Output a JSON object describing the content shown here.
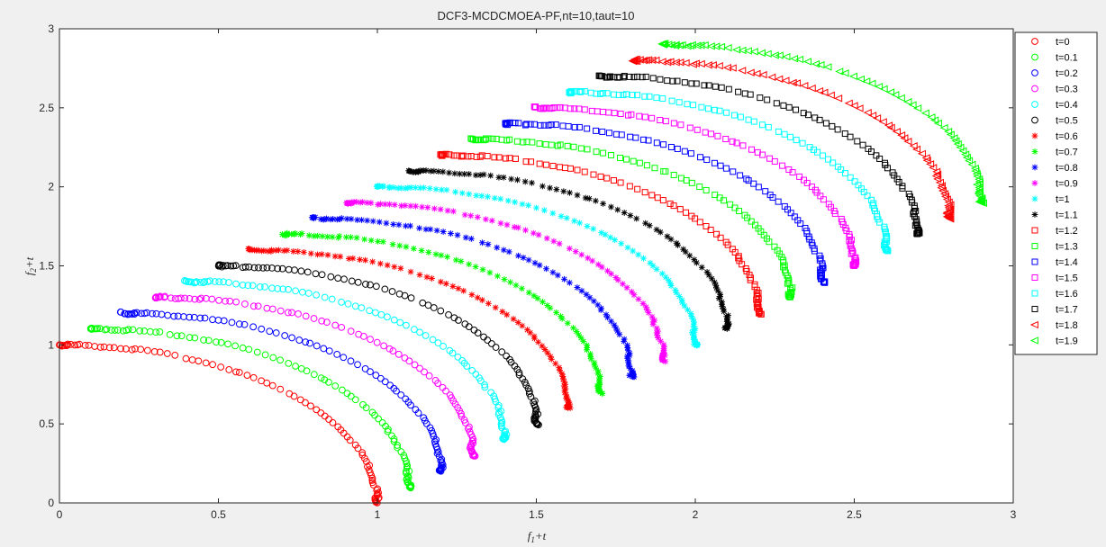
{
  "chart_data": {
    "type": "scatter",
    "title": "DCF3-MCDCMOEA-PF,nt=10,taut=10",
    "xlabel": {
      "base": "f",
      "sub": "1",
      "suffix": "+t"
    },
    "ylabel": {
      "base": "f",
      "sub": "2",
      "suffix": "+t"
    },
    "xlim": [
      0,
      3
    ],
    "ylim": [
      0,
      3
    ],
    "xticks": [
      "0",
      "0.5",
      "1",
      "1.5",
      "2",
      "2.5",
      "3"
    ],
    "yticks": [
      "0",
      "0.5",
      "1",
      "1.5",
      "2",
      "2.5",
      "3"
    ],
    "grid": false,
    "legend_position": "top-right",
    "front_shape": "quarter circle of radius 1 from (t, 1+t) to (1+t, t), points concentrated near the ends",
    "series": [
      {
        "name": "t=0",
        "t": 0.0,
        "marker": "circle",
        "color": "#ff0000"
      },
      {
        "name": "t=0.1",
        "t": 0.1,
        "marker": "circle",
        "color": "#00ff00"
      },
      {
        "name": "t=0.2",
        "t": 0.2,
        "marker": "circle",
        "color": "#0000ff"
      },
      {
        "name": "t=0.3",
        "t": 0.3,
        "marker": "circle",
        "color": "#ff00ff"
      },
      {
        "name": "t=0.4",
        "t": 0.4,
        "marker": "circle",
        "color": "#00ffff"
      },
      {
        "name": "t=0.5",
        "t": 0.5,
        "marker": "circle",
        "color": "#000000"
      },
      {
        "name": "t=0.6",
        "t": 0.6,
        "marker": "asterisk",
        "color": "#ff0000"
      },
      {
        "name": "t=0.7",
        "t": 0.7,
        "marker": "asterisk",
        "color": "#00ff00"
      },
      {
        "name": "t=0.8",
        "t": 0.8,
        "marker": "asterisk",
        "color": "#0000ff"
      },
      {
        "name": "t=0.9",
        "t": 0.9,
        "marker": "asterisk",
        "color": "#ff00ff"
      },
      {
        "name": "t=1",
        "t": 1.0,
        "marker": "asterisk",
        "color": "#00ffff"
      },
      {
        "name": "t=1.1",
        "t": 1.1,
        "marker": "asterisk",
        "color": "#000000"
      },
      {
        "name": "t=1.2",
        "t": 1.2,
        "marker": "square",
        "color": "#ff0000"
      },
      {
        "name": "t=1.3",
        "t": 1.3,
        "marker": "square",
        "color": "#00ff00"
      },
      {
        "name": "t=1.4",
        "t": 1.4,
        "marker": "square",
        "color": "#0000ff"
      },
      {
        "name": "t=1.5",
        "t": 1.5,
        "marker": "square",
        "color": "#ff00ff"
      },
      {
        "name": "t=1.6",
        "t": 1.6,
        "marker": "square",
        "color": "#00ffff"
      },
      {
        "name": "t=1.7",
        "t": 1.7,
        "marker": "square",
        "color": "#000000"
      },
      {
        "name": "t=1.8",
        "t": 1.8,
        "marker": "triangle-left",
        "color": "#ff0000"
      },
      {
        "name": "t=1.9",
        "t": 1.9,
        "marker": "triangle-left",
        "color": "#00ff00"
      }
    ]
  }
}
